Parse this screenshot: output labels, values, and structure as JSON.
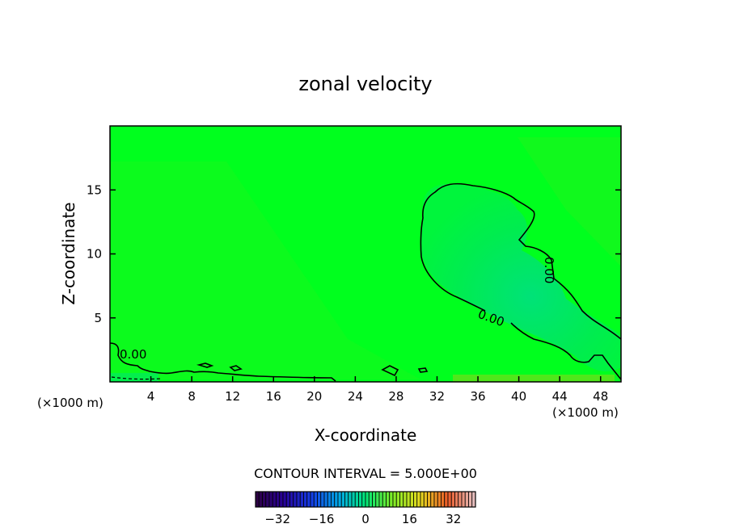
{
  "chart_data": {
    "type": "heatmap",
    "title": "zonal velocity",
    "xlabel": "X-coordinate",
    "ylabel": "Z-coordinate",
    "x_units": "(×1000 m)",
    "y_units": "(×1000 m)",
    "xlim": [
      0,
      50
    ],
    "ylim": [
      0,
      20
    ],
    "x_ticks": [
      4,
      8,
      12,
      16,
      20,
      24,
      28,
      32,
      36,
      40,
      44,
      48
    ],
    "y_ticks": [
      5,
      10,
      15
    ],
    "contour_interval_text": "CONTOUR INTERVAL = 5.000E+00",
    "contour_interval": 5,
    "contour_labels": [
      "0.00",
      "0.00",
      "0.00"
    ],
    "colorbar": {
      "ticks": [
        -32,
        -16,
        0,
        16,
        32
      ],
      "tick_labels": [
        "−32",
        "−16",
        "0",
        "16",
        "32"
      ],
      "range": [
        -40,
        40
      ]
    },
    "field_description_values": {
      "background_value": 2,
      "negative_region_min": -3,
      "surface_positive_max": 5
    },
    "colors": {
      "field_near_zero": "#00ff1e",
      "field_slightly_positive": "#2cf21c",
      "field_slightly_negative": "#00ee58"
    }
  }
}
